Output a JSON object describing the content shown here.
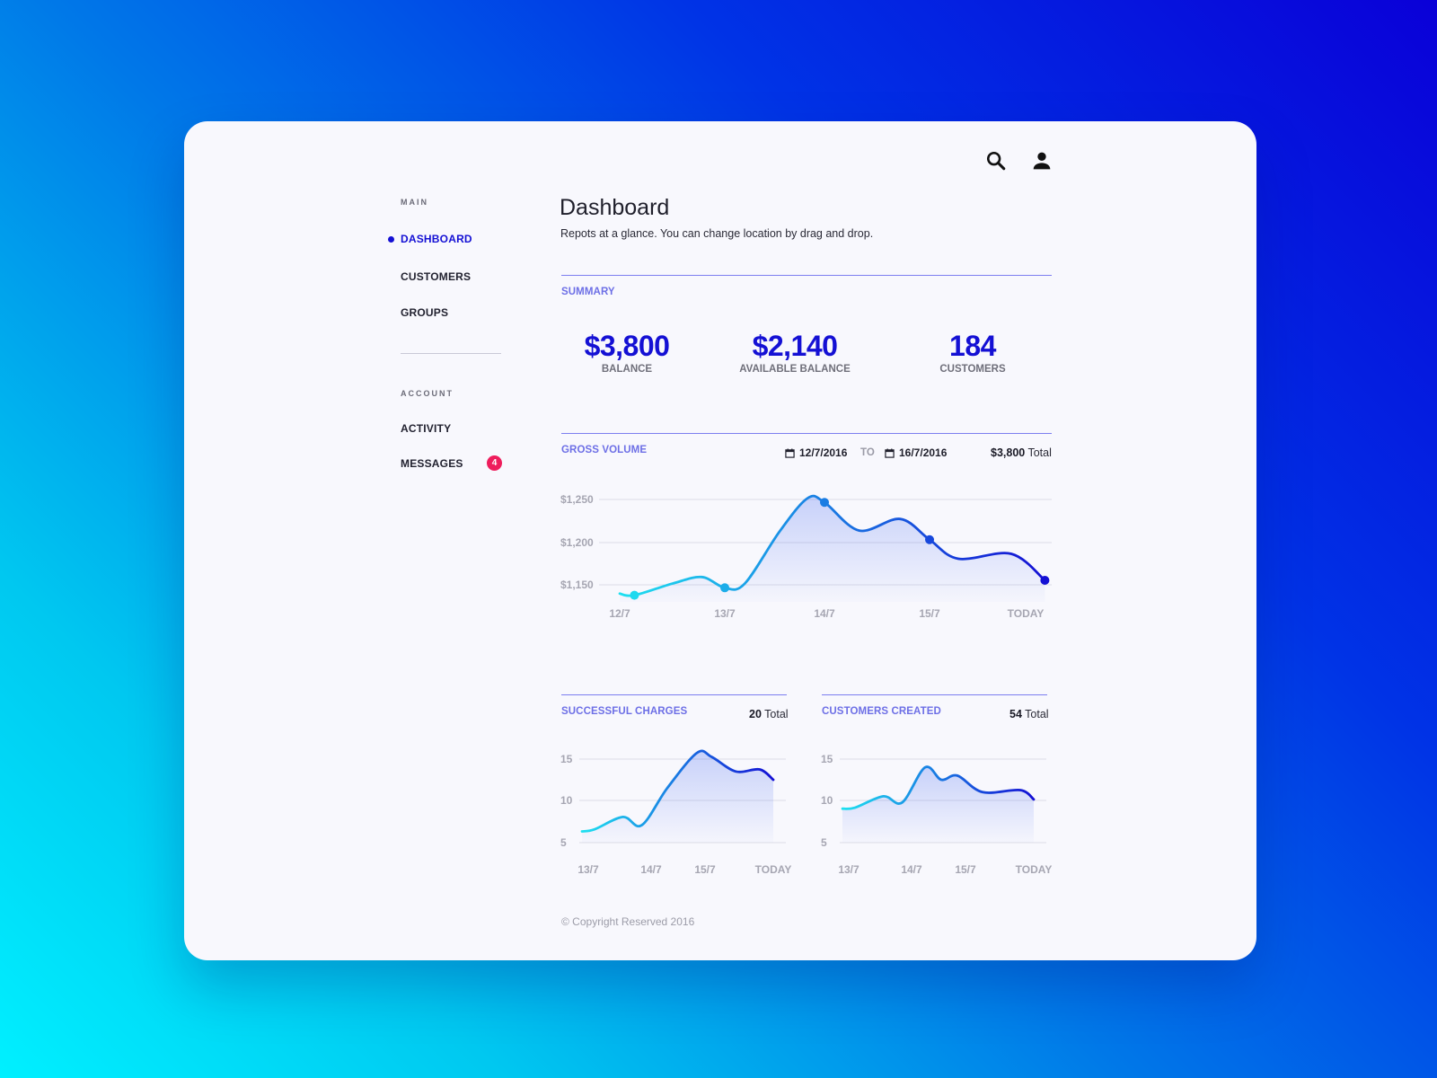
{
  "header": {
    "search_icon": "search-icon",
    "user_icon": "user-icon"
  },
  "sidebar": {
    "main_label": "MAIN",
    "main_items": [
      {
        "label": "DASHBOARD",
        "active": true
      },
      {
        "label": "CUSTOMERS",
        "active": false
      },
      {
        "label": "GROUPS",
        "active": false
      }
    ],
    "account_label": "ACCOUNT",
    "account_items": [
      {
        "label": "ACTIVITY"
      },
      {
        "label": "MESSAGES",
        "badge": "4"
      }
    ]
  },
  "page": {
    "title": "Dashboard",
    "subtitle": "Repots at a glance. You can change location by drag and drop."
  },
  "summary": {
    "label": "SUMMARY",
    "stats": [
      {
        "value": "$3,800",
        "label": "BALANCE"
      },
      {
        "value": "$2,140",
        "label": "AVAILABLE BALANCE"
      },
      {
        "value": "184",
        "label": "CUSTOMERS"
      }
    ]
  },
  "gross_volume": {
    "label": "GROSS VOLUME",
    "date_from": "12/7/2016",
    "to_label": "TO",
    "date_to": "16/7/2016",
    "total_value": "$3,800",
    "total_label": "Total"
  },
  "successful_charges": {
    "label": "SUCCESSFUL CHARGES",
    "total_value": "20",
    "total_label": "Total"
  },
  "customers_created": {
    "label": "CUSTOMERS CREATED",
    "total_value": "54",
    "total_label": "Total"
  },
  "colors": {
    "accent": "#1410d4",
    "rule": "#7c7ef0",
    "line_start": "#1ee0f0",
    "line_end": "#1410d4",
    "badge": "#ee1d5c"
  },
  "footer": {
    "copyright": "© Copyright Reserved 2016"
  },
  "chart_data": [
    {
      "type": "line",
      "name": "gross-volume",
      "x": [
        "12/7",
        "13/7",
        "14/7",
        "15/7",
        "TODAY"
      ],
      "tick_labels_y": [
        "$1,250",
        "$1,200",
        "$1,150"
      ],
      "ylim": [
        1140,
        1270
      ],
      "points": [
        {
          "x": 0,
          "y": 1150
        },
        {
          "x": 0.14,
          "y": 1148
        },
        {
          "x": 0.5,
          "y": 1162
        },
        {
          "x": 0.78,
          "y": 1170
        },
        {
          "x": 1.0,
          "y": 1157
        },
        {
          "x": 1.2,
          "y": 1162
        },
        {
          "x": 1.55,
          "y": 1225
        },
        {
          "x": 1.83,
          "y": 1265
        },
        {
          "x": 2.0,
          "y": 1260
        },
        {
          "x": 2.33,
          "y": 1226
        },
        {
          "x": 2.72,
          "y": 1240
        },
        {
          "x": 3.0,
          "y": 1215
        },
        {
          "x": 3.3,
          "y": 1192
        },
        {
          "x": 3.85,
          "y": 1198
        },
        {
          "x": 4.2,
          "y": 1166
        }
      ],
      "markers": [
        0.14,
        1.0,
        2.0,
        3.0,
        4.2
      ],
      "grid": true
    },
    {
      "type": "area",
      "name": "successful-charges",
      "x": [
        "13/7",
        "14/7",
        "15/7",
        "TODAY"
      ],
      "tick_labels_y": [
        "15",
        "10",
        "5"
      ],
      "ylim": [
        4,
        16
      ],
      "points": [
        {
          "x": -0.1,
          "y": 7.0
        },
        {
          "x": 0.1,
          "y": 7.2
        },
        {
          "x": 0.55,
          "y": 8.4
        },
        {
          "x": 0.85,
          "y": 7.6
        },
        {
          "x": 1.3,
          "y": 11.2
        },
        {
          "x": 1.85,
          "y": 14.6
        },
        {
          "x": 2.1,
          "y": 14.2
        },
        {
          "x": 2.45,
          "y": 12.8
        },
        {
          "x": 2.8,
          "y": 13.0
        },
        {
          "x": 3.0,
          "y": 12.0
        }
      ],
      "grid": true
    },
    {
      "type": "area",
      "name": "customers-created",
      "x": [
        "13/7",
        "14/7",
        "15/7",
        "TODAY"
      ],
      "tick_labels_y": [
        "15",
        "10",
        "5"
      ],
      "ylim": [
        4,
        16
      ],
      "points": [
        {
          "x": -0.1,
          "y": 9.2
        },
        {
          "x": 0.1,
          "y": 9.3
        },
        {
          "x": 0.55,
          "y": 10.4
        },
        {
          "x": 0.85,
          "y": 9.8
        },
        {
          "x": 1.25,
          "y": 13.2
        },
        {
          "x": 1.55,
          "y": 12.0
        },
        {
          "x": 1.85,
          "y": 12.4
        },
        {
          "x": 2.25,
          "y": 10.8
        },
        {
          "x": 2.8,
          "y": 11.0
        },
        {
          "x": 3.0,
          "y": 10.1
        }
      ],
      "grid": true
    }
  ]
}
